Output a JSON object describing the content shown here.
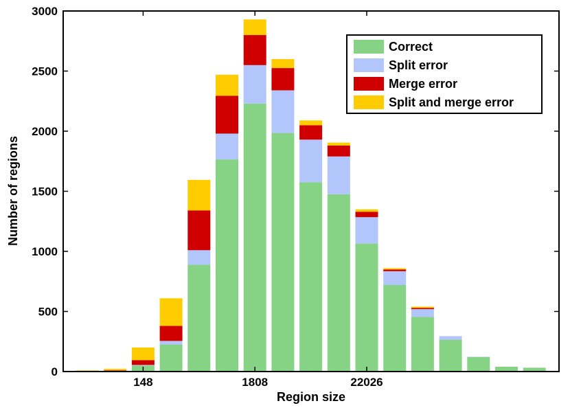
{
  "chart_data": {
    "type": "bar",
    "stacked": true,
    "title": "",
    "xlabel": "Region size",
    "ylabel": "Number of regions",
    "ylim": [
      0,
      3000
    ],
    "yticks": [
      0,
      500,
      1000,
      1500,
      2000,
      2500,
      3000
    ],
    "xtick_labels": [
      {
        "bin": 3,
        "label": "148"
      },
      {
        "bin": 7,
        "label": "1808"
      },
      {
        "bin": 11,
        "label": "22026"
      }
    ],
    "bins": [
      1,
      2,
      3,
      4,
      5,
      6,
      7,
      8,
      9,
      10,
      11,
      12,
      13,
      14,
      15,
      16,
      17
    ],
    "series": [
      {
        "name": "Correct",
        "color": "#86d386",
        "values": [
          2,
          5,
          50,
          225,
          890,
          1765,
          2230,
          1985,
          1575,
          1475,
          1065,
          720,
          455,
          265,
          120,
          40,
          32
        ]
      },
      {
        "name": "Split error",
        "color": "#b3c6fb",
        "values": [
          0,
          0,
          5,
          30,
          120,
          215,
          320,
          355,
          355,
          315,
          220,
          115,
          65,
          30,
          3,
          0,
          0
        ]
      },
      {
        "name": "Merge error",
        "color": "#d00000",
        "values": [
          5,
          5,
          40,
          125,
          330,
          315,
          250,
          185,
          120,
          90,
          45,
          15,
          10,
          0,
          0,
          0,
          0
        ]
      },
      {
        "name": "Split and merge error",
        "color": "#ffcc00",
        "values": [
          3,
          12,
          105,
          230,
          255,
          175,
          130,
          75,
          40,
          25,
          20,
          10,
          10,
          0,
          0,
          0,
          0
        ]
      }
    ],
    "grid": false,
    "legend_position": "top-right"
  }
}
